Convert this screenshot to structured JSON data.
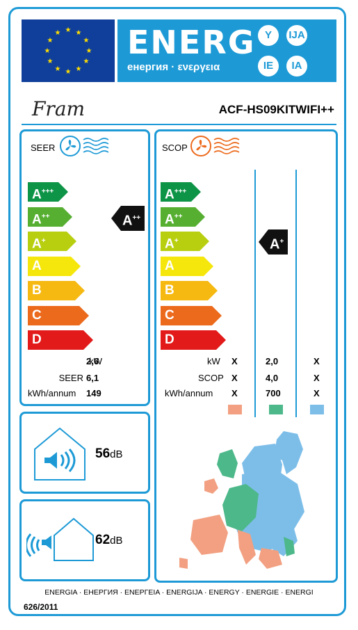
{
  "header": {
    "title": "ENERG",
    "subtitle": "енергия · ενεργεια",
    "lang_codes": [
      "Y",
      "IJA",
      "IE",
      "IA"
    ]
  },
  "brand": "Fram",
  "model": "ACF-HS09KITWIFI++",
  "classes": [
    "A+++",
    "A++",
    "A+",
    "A",
    "B",
    "C",
    "D"
  ],
  "class_colors": [
    "#0d9447",
    "#56af31",
    "#b8cf10",
    "#f5e60b",
    "#f6b912",
    "#ec6a1c",
    "#e21a1a"
  ],
  "seer": {
    "label": "SEER",
    "rating": "A++",
    "rows": [
      {
        "unit": "kW",
        "value": "2,6"
      },
      {
        "unit": "SEER",
        "value": "6,1"
      },
      {
        "unit": "kWh/annum",
        "value": "149"
      }
    ]
  },
  "scop": {
    "label": "SCOP",
    "rating": "A+",
    "rows": [
      {
        "unit": "kW",
        "cols": [
          "X",
          "2,0",
          "X"
        ]
      },
      {
        "unit": "SCOP",
        "cols": [
          "X",
          "4,0",
          "X"
        ]
      },
      {
        "unit": "kWh/annum",
        "cols": [
          "X",
          "700",
          "X"
        ]
      }
    ],
    "zone_colors": [
      "#f2a081",
      "#4db88a",
      "#7dbee9"
    ]
  },
  "noise": {
    "indoor": {
      "value": "56",
      "unit": "dB"
    },
    "outdoor": {
      "value": "62",
      "unit": "dB"
    }
  },
  "footer": "ENERGIA · ЕНЕРГИЯ · ΕΝΕΡΓΕΙΑ · ENERGIJA · ENERGY · ENERGIE · ENERGI",
  "regulation": "626/2011"
}
